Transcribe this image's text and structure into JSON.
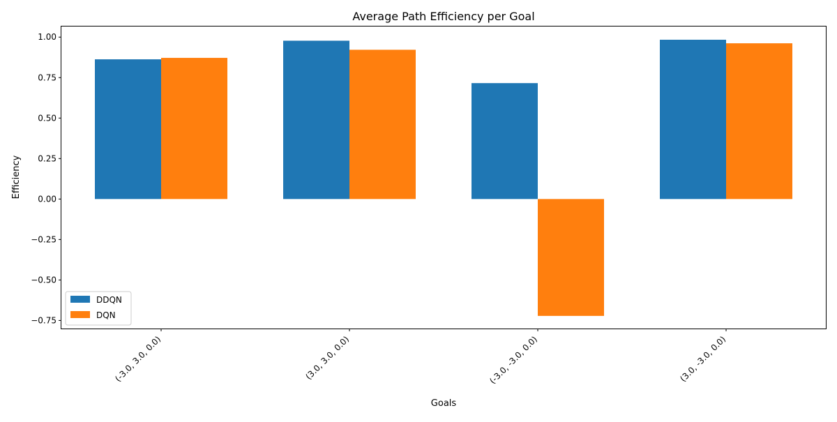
{
  "chart_data": {
    "type": "bar",
    "title": "Average Path Efficiency per Goal",
    "xlabel": "Goals",
    "ylabel": "Efficiency",
    "categories": [
      "(-3.0, 3.0, 0.0)",
      "(3.0, 3.0, 0.0)",
      "(-3.0, -3.0, 0.0)",
      "(3.0, -3.0, 0.0)"
    ],
    "series": [
      {
        "name": "DDQN",
        "color": "#1f77b4",
        "values": [
          0.863,
          0.978,
          0.716,
          0.984
        ]
      },
      {
        "name": "DQN",
        "color": "#ff7f0e",
        "values": [
          0.872,
          0.922,
          -0.722,
          0.962
        ]
      }
    ],
    "ylim": [
      -0.8,
      1.07
    ],
    "yticks": [
      -0.75,
      -0.5,
      -0.25,
      0.0,
      0.25,
      0.5,
      0.75,
      1.0
    ],
    "ytick_labels": [
      "−0.75",
      "−0.50",
      "−0.25",
      "0.00",
      "0.25",
      "0.50",
      "0.75",
      "1.00"
    ],
    "xtick_rotation": 45,
    "legend_position": "lower-left",
    "grid": false
  }
}
